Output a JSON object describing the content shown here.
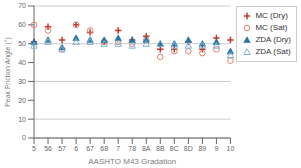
{
  "chart_data": {
    "type": "scatter",
    "xlabel": "AASHTO M43 Gradation",
    "ylabel": "Peak Friction Angle (°)",
    "categories": [
      "5",
      "56",
      "57",
      "6",
      "67",
      "68",
      "7",
      "78",
      "8A",
      "8B",
      "8C",
      "8D",
      "89",
      "9",
      "10"
    ],
    "series": [
      {
        "name": "MC (Dry)",
        "color": "#c0392b",
        "marker": "plus",
        "values": [
          51,
          59,
          52,
          60,
          56,
          51,
          57,
          52,
          54,
          47,
          47,
          51,
          47,
          53,
          52
        ]
      },
      {
        "name": "MC (Sat)",
        "color": "#e08070",
        "marker": "circle_open",
        "values": [
          60,
          57,
          47,
          60,
          57,
          51,
          51,
          50,
          52,
          43,
          46,
          46,
          45,
          47,
          41
        ]
      },
      {
        "name": "ZDA (Dry)",
        "color": "#2471a3",
        "marker": "triangle",
        "values": [
          51,
          52,
          48,
          53,
          52,
          52,
          53,
          52,
          52,
          50,
          50,
          52,
          50,
          51,
          46
        ]
      },
      {
        "name": "ZDA (Sat)",
        "color": "#7fb3d3",
        "marker": "triangle_open",
        "values": [
          49,
          51,
          47,
          51,
          51,
          50,
          50,
          49,
          50,
          50,
          49,
          49,
          49,
          49,
          44
        ]
      }
    ],
    "ylim": [
      0,
      70
    ],
    "yticks": [
      0,
      10,
      20,
      30,
      40,
      50,
      60,
      70
    ],
    "grid": "y",
    "legend": "right"
  }
}
